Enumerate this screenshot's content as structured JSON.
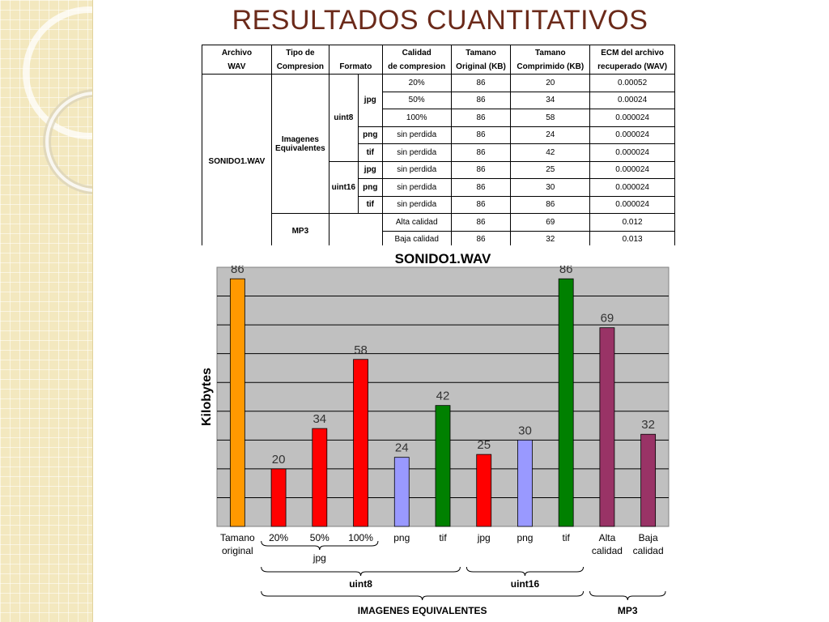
{
  "slide_title": "RESULTADOS CUANTITATIVOS",
  "table": {
    "headers": [
      [
        "Archivo",
        "WAV"
      ],
      [
        "Tipo de",
        "Compresion"
      ],
      [
        "",
        "Formato"
      ],
      [
        "Calidad",
        "de compresion"
      ],
      [
        "Tamano",
        "Original (KB)"
      ],
      [
        "Tamano",
        "Comprimido (KB)"
      ],
      [
        "ECM del archivo",
        "recuperado (WAV)"
      ]
    ],
    "archivo": "SONIDO1.WAV",
    "tipo_imagenes": [
      "Imagenes",
      "Equivalentes"
    ],
    "tipo_mp3": "MP3",
    "formatos": {
      "uint8": "uint8",
      "uint16": "uint16"
    },
    "rows": [
      {
        "fmt": "",
        "quality": "20%",
        "orig": "86",
        "comp": "20",
        "ecm": "0.00052"
      },
      {
        "fmt": "jpg",
        "quality": "50%",
        "orig": "86",
        "comp": "34",
        "ecm": "0.00024"
      },
      {
        "fmt": "",
        "quality": "100%",
        "orig": "86",
        "comp": "58",
        "ecm": "0.000024"
      },
      {
        "fmt": "png",
        "quality": "sin perdida",
        "orig": "86",
        "comp": "24",
        "ecm": "0.000024"
      },
      {
        "fmt": "tif",
        "quality": "sin perdida",
        "orig": "86",
        "comp": "42",
        "ecm": "0.000024"
      },
      {
        "fmt": "jpg",
        "quality": "sin perdida",
        "orig": "86",
        "comp": "25",
        "ecm": "0.000024"
      },
      {
        "fmt": "png",
        "quality": "sin perdida",
        "orig": "86",
        "comp": "30",
        "ecm": "0.000024"
      },
      {
        "fmt": "tif",
        "quality": "sin perdida",
        "orig": "86",
        "comp": "86",
        "ecm": "0.000024"
      },
      {
        "fmt": "",
        "quality": "Alta calidad",
        "orig": "86",
        "comp": "69",
        "ecm": "0.012"
      },
      {
        "fmt": "",
        "quality": "Baja calidad",
        "orig": "86",
        "comp": "32",
        "ecm": "0.013"
      }
    ]
  },
  "chart_data": {
    "type": "bar",
    "title": "SONIDO1.WAV",
    "ylabel": "Kilobytes",
    "xlabel": "",
    "ylim": [
      0,
      90
    ],
    "grid": true,
    "grid_step": 10,
    "legend": "none",
    "categories": [
      [
        "Tamano",
        "original"
      ],
      [
        "20%"
      ],
      [
        "50%"
      ],
      [
        "100%"
      ],
      [
        "png"
      ],
      [
        "tif"
      ],
      [
        "jpg"
      ],
      [
        "png"
      ],
      [
        "tif"
      ],
      [
        "Alta",
        "calidad"
      ],
      [
        "Baja",
        "calidad"
      ]
    ],
    "values": [
      86,
      20,
      34,
      58,
      24,
      42,
      25,
      30,
      86,
      69,
      32
    ],
    "colors": [
      "#ff9900",
      "#ff0000",
      "#ff0000",
      "#ff0000",
      "#9999ff",
      "#008000",
      "#ff0000",
      "#9999ff",
      "#008000",
      "#993366",
      "#993366"
    ],
    "groups": [
      {
        "label": "jpg",
        "from": 1,
        "to": 3,
        "level": 1
      },
      {
        "label": "uint8",
        "from": 1,
        "to": 5,
        "level": 2
      },
      {
        "label": "uint16",
        "from": 6,
        "to": 8,
        "level": 2
      },
      {
        "label": "IMAGENES EQUIVALENTES",
        "from": 1,
        "to": 8,
        "level": 3
      },
      {
        "label": "MP3",
        "from": 9,
        "to": 10,
        "level": 3
      }
    ]
  }
}
